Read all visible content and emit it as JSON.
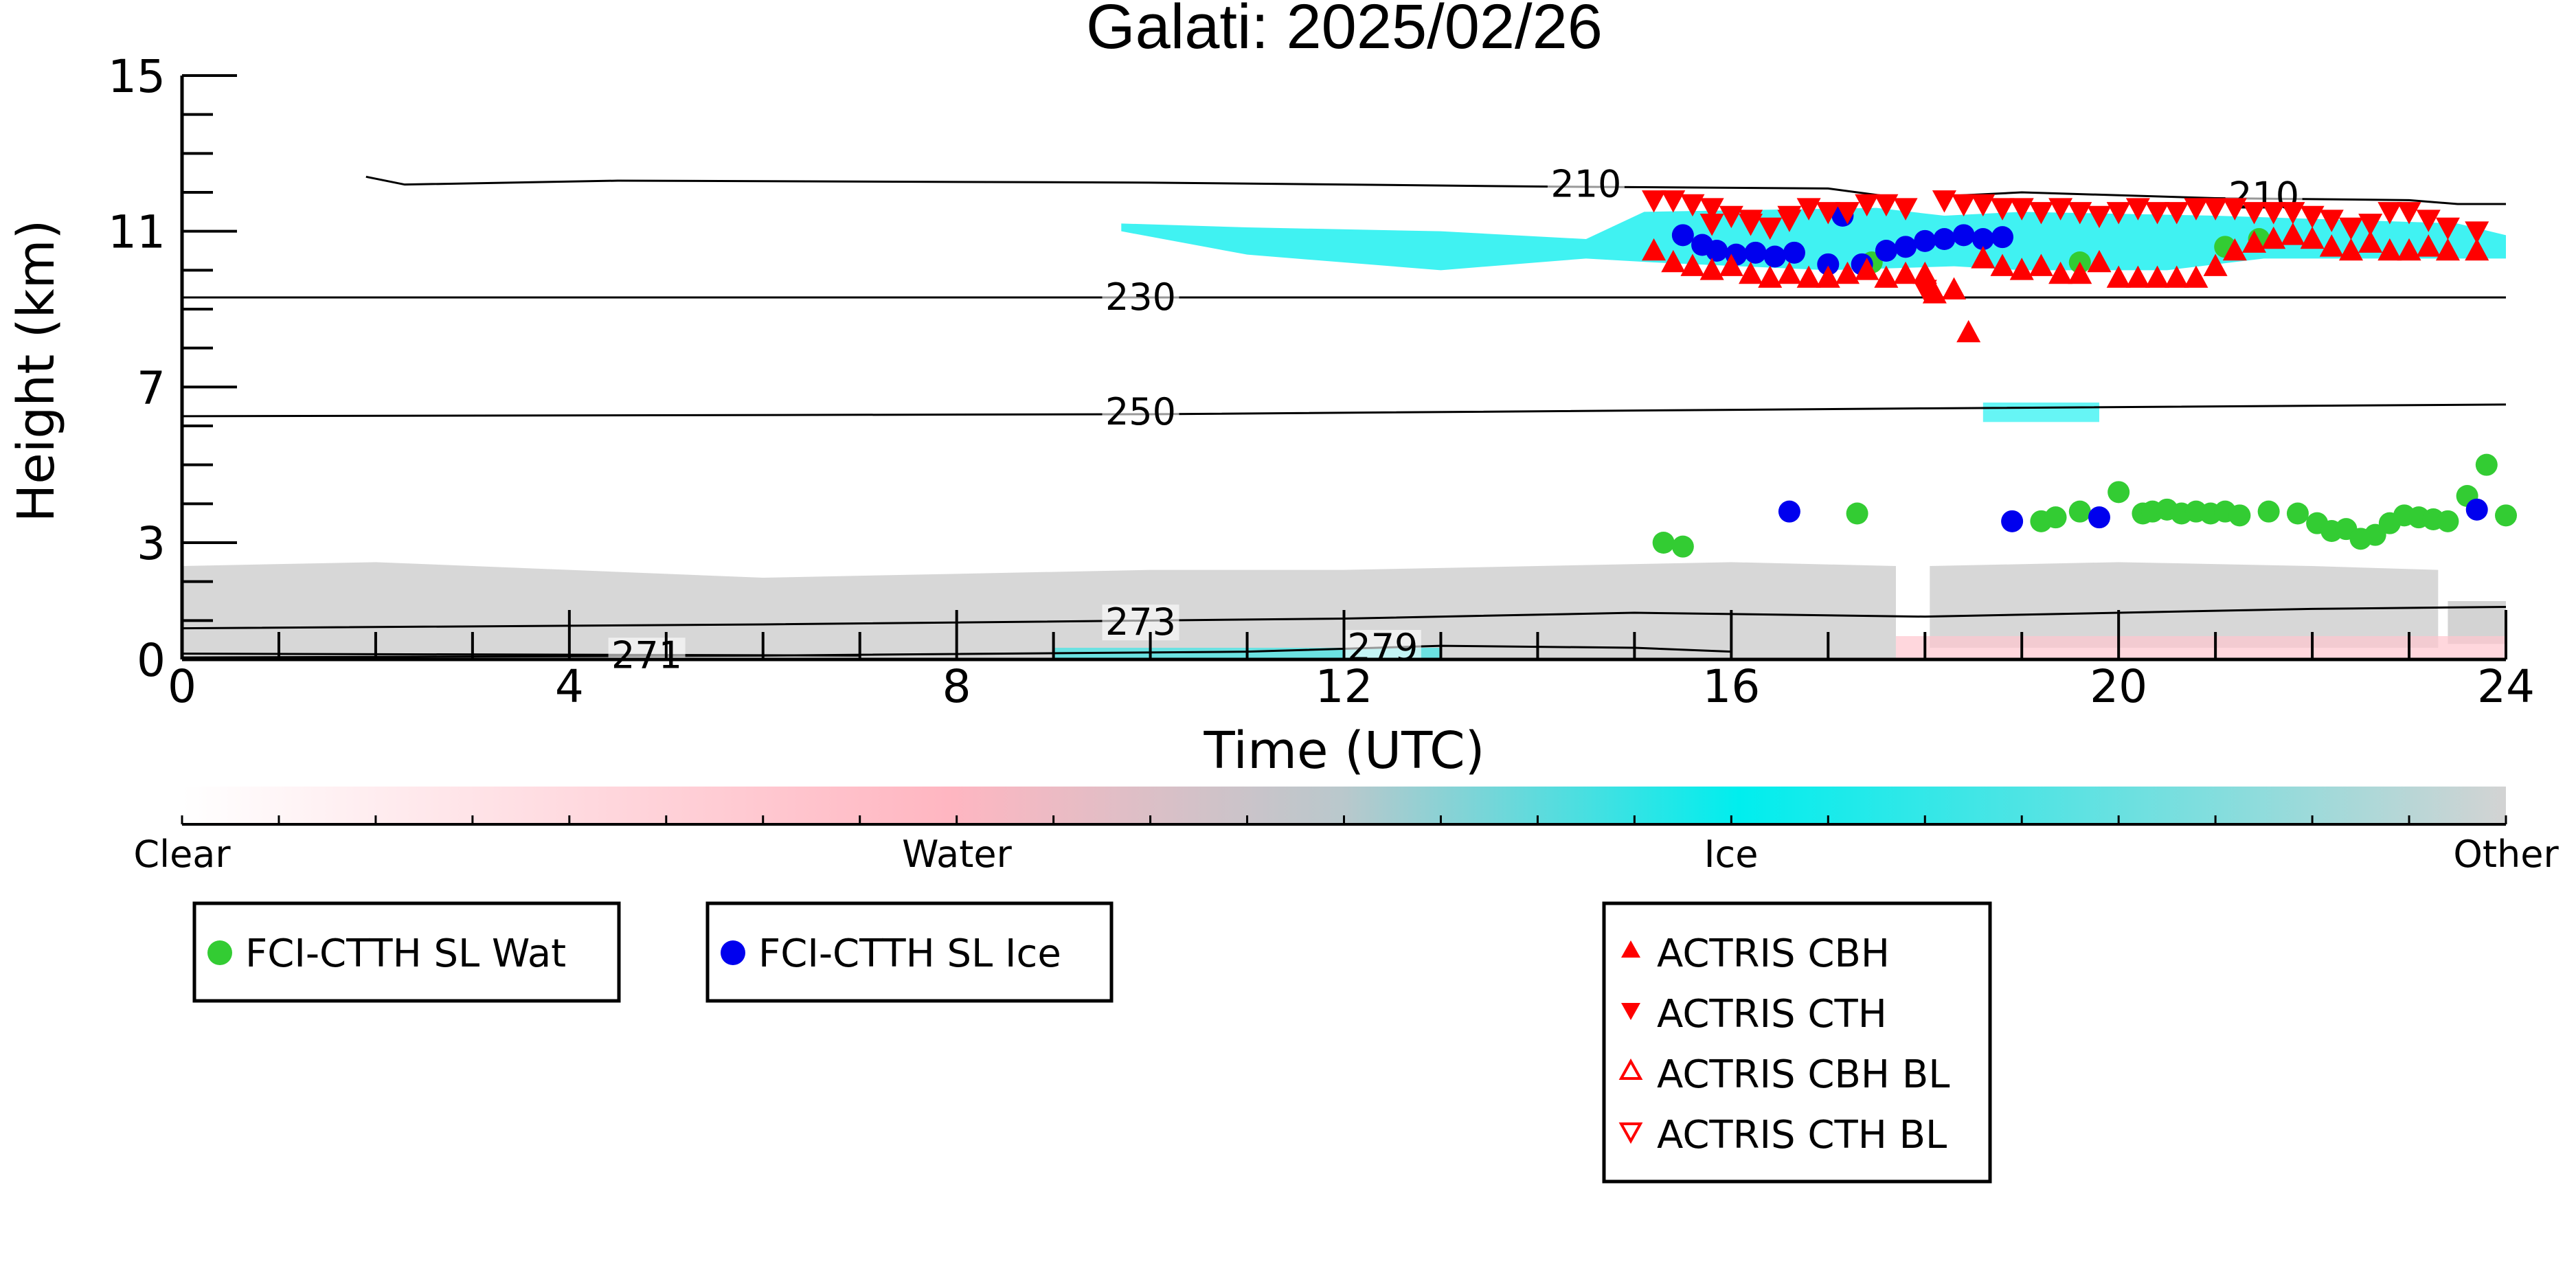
{
  "chart_data": {
    "type": "scatter",
    "title": "Galati: 2025/02/26",
    "xlabel": "Time (UTC)",
    "ylabel": "Height (km)",
    "xlim": [
      0,
      24
    ],
    "ylim": [
      0,
      15
    ],
    "xticks": [
      0,
      4,
      8,
      12,
      16,
      20,
      24
    ],
    "yticks": [
      0,
      3,
      7,
      11,
      15
    ],
    "grid": false,
    "colorbar": {
      "labels": [
        "Clear",
        "Water",
        "Ice",
        "Other"
      ],
      "colors": [
        "#ffffff",
        "#ffb6c1",
        "#00eeee",
        "#d3d3d3"
      ]
    },
    "contours": [
      {
        "label": "210",
        "points": [
          [
            1.9,
            12.4
          ],
          [
            2.3,
            12.2
          ],
          [
            4.5,
            12.3
          ],
          [
            10,
            12.25
          ],
          [
            14,
            12.15
          ],
          [
            17,
            12.1
          ],
          [
            17.6,
            11.9
          ]
        ]
      },
      {
        "label": "210",
        "points": [
          [
            18.2,
            11.9
          ],
          [
            19,
            12.0
          ],
          [
            21,
            11.85
          ],
          [
            23,
            11.8
          ],
          [
            23.5,
            11.7
          ],
          [
            24,
            11.7
          ]
        ]
      },
      {
        "label": "230",
        "points": [
          [
            0,
            9.3
          ],
          [
            8,
            9.3
          ],
          [
            16,
            9.3
          ],
          [
            24,
            9.3
          ]
        ]
      },
      {
        "label": "250",
        "points": [
          [
            0,
            6.25
          ],
          [
            10,
            6.3
          ],
          [
            18,
            6.45
          ],
          [
            24,
            6.55
          ]
        ]
      },
      {
        "label": "273",
        "points": [
          [
            0,
            0.8
          ],
          [
            6,
            0.9
          ],
          [
            12,
            1.05
          ],
          [
            15,
            1.2
          ],
          [
            18,
            1.1
          ],
          [
            22,
            1.3
          ],
          [
            24,
            1.35
          ]
        ]
      },
      {
        "label": "279",
        "points": [
          [
            0,
            0.05
          ],
          [
            6,
            0.1
          ],
          [
            11,
            0.2
          ],
          [
            13,
            0.35
          ],
          [
            15,
            0.3
          ],
          [
            16,
            0.2
          ]
        ]
      },
      {
        "label": "271",
        "points": [
          [
            0,
            0.15
          ],
          [
            7,
            0.1
          ]
        ]
      }
    ],
    "contour_label_positions": [
      [
        14.5,
        12.2
      ],
      [
        21.5,
        11.9
      ],
      [
        9.9,
        9.3
      ],
      [
        9.9,
        6.35
      ],
      [
        9.9,
        0.95
      ],
      [
        12.4,
        0.3
      ],
      [
        4.8,
        0.1
      ]
    ],
    "series": [
      {
        "name": "FCI-CTTH SL Wat",
        "marker": "circle",
        "color": "#33cc33",
        "x": [
          15.3,
          15.5,
          17.3,
          19.2,
          19.35,
          19.6,
          20.0,
          20.25,
          20.35,
          20.5,
          20.65,
          20.8,
          20.95,
          21.1,
          21.25,
          21.55,
          21.85,
          22.05,
          22.2,
          22.35,
          22.5,
          22.65,
          22.8,
          22.95,
          23.1,
          23.25,
          23.4,
          23.6,
          23.8,
          24.0,
          19.6,
          21.1,
          21.45,
          17.45
        ],
        "y": [
          3.0,
          2.9,
          3.75,
          3.55,
          3.65,
          3.8,
          4.3,
          3.75,
          3.8,
          3.85,
          3.75,
          3.8,
          3.75,
          3.8,
          3.7,
          3.8,
          3.75,
          3.5,
          3.3,
          3.35,
          3.1,
          3.2,
          3.5,
          3.7,
          3.65,
          3.6,
          3.55,
          4.2,
          5.0,
          3.7,
          10.2,
          10.6,
          10.8,
          10.2
        ]
      },
      {
        "name": "FCI-CTTH SL Ice",
        "marker": "circle",
        "color": "#0000ee",
        "x": [
          15.5,
          15.7,
          15.85,
          16.05,
          16.25,
          16.45,
          16.65,
          17.0,
          17.35,
          17.6,
          17.8,
          18.0,
          18.2,
          18.4,
          18.6,
          18.8,
          17.15,
          16.6,
          18.9,
          19.8,
          23.7
        ],
        "y": [
          10.9,
          10.65,
          10.5,
          10.4,
          10.45,
          10.35,
          10.45,
          10.15,
          10.15,
          10.5,
          10.6,
          10.75,
          10.8,
          10.9,
          10.8,
          10.85,
          11.4,
          3.8,
          3.55,
          3.65,
          3.85
        ]
      },
      {
        "name": "ACTRIS CBH",
        "marker": "triangle-up",
        "color": "#ff0000",
        "x": [
          15.2,
          15.4,
          15.6,
          15.8,
          16.0,
          16.2,
          16.4,
          16.6,
          16.8,
          17.0,
          17.2,
          17.4,
          17.6,
          17.8,
          18.0,
          18.1,
          18.3,
          18.45,
          18.6,
          18.8,
          19.0,
          19.2,
          19.4,
          19.6,
          19.8,
          20.0,
          20.2,
          20.4,
          20.6,
          20.8,
          21.0,
          21.2,
          21.4,
          21.6,
          21.8,
          22.0,
          22.2,
          22.4,
          22.6,
          22.8,
          23.0,
          23.2,
          23.4,
          23.7
        ],
        "y": [
          10.5,
          10.2,
          10.1,
          10.0,
          10.1,
          9.9,
          9.8,
          9.9,
          9.8,
          9.8,
          9.9,
          10.0,
          9.8,
          9.9,
          9.9,
          9.4,
          9.5,
          8.4,
          10.3,
          10.1,
          10.0,
          10.1,
          9.9,
          9.9,
          10.2,
          9.8,
          9.8,
          9.8,
          9.8,
          9.8,
          10.1,
          10.5,
          10.7,
          10.8,
          10.9,
          10.8,
          10.6,
          10.5,
          10.7,
          10.5,
          10.5,
          10.6,
          10.5,
          10.5
        ]
      },
      {
        "name": "ACTRIS CTH",
        "marker": "triangle-down",
        "color": "#ff0000",
        "x": [
          15.2,
          15.4,
          15.6,
          15.8,
          16.0,
          16.2,
          16.4,
          16.6,
          16.8,
          17.0,
          17.2,
          17.4,
          17.6,
          17.8,
          18.0,
          18.2,
          18.4,
          18.6,
          18.8,
          19.0,
          19.2,
          19.4,
          19.6,
          19.8,
          20.0,
          20.2,
          20.4,
          20.6,
          20.8,
          21.0,
          21.2,
          21.4,
          21.6,
          21.8,
          22.0,
          22.2,
          22.4,
          22.6,
          22.8,
          23.0,
          23.2,
          23.4,
          23.7,
          15.8,
          16.2,
          16.6
        ],
        "y": [
          11.8,
          11.8,
          11.7,
          11.6,
          11.4,
          11.2,
          11.1,
          11.4,
          11.6,
          11.5,
          11.5,
          11.7,
          11.7,
          11.6,
          9.5,
          11.8,
          11.7,
          11.7,
          11.6,
          11.6,
          11.5,
          11.6,
          11.5,
          11.4,
          11.5,
          11.6,
          11.5,
          11.5,
          11.6,
          11.6,
          11.6,
          11.5,
          11.5,
          11.5,
          11.4,
          11.3,
          11.1,
          11.2,
          11.5,
          11.5,
          11.3,
          11.1,
          11.0,
          11.2,
          11.3,
          11.3
        ]
      },
      {
        "name": "ACTRIS CBH BL",
        "marker": "triangle-up-open",
        "color": "#ff0000",
        "x": [],
        "y": []
      },
      {
        "name": "ACTRIS CTH BL",
        "marker": "triangle-down-open",
        "color": "#ff0000",
        "x": [],
        "y": []
      }
    ],
    "legend_groups": [
      [
        "FCI-CTTH SL Wat"
      ],
      [
        "FCI-CTTH SL Ice"
      ],
      [
        "ACTRIS CBH",
        "ACTRIS CTH",
        "ACTRIS CBH BL",
        "ACTRIS CTH BL"
      ]
    ]
  }
}
